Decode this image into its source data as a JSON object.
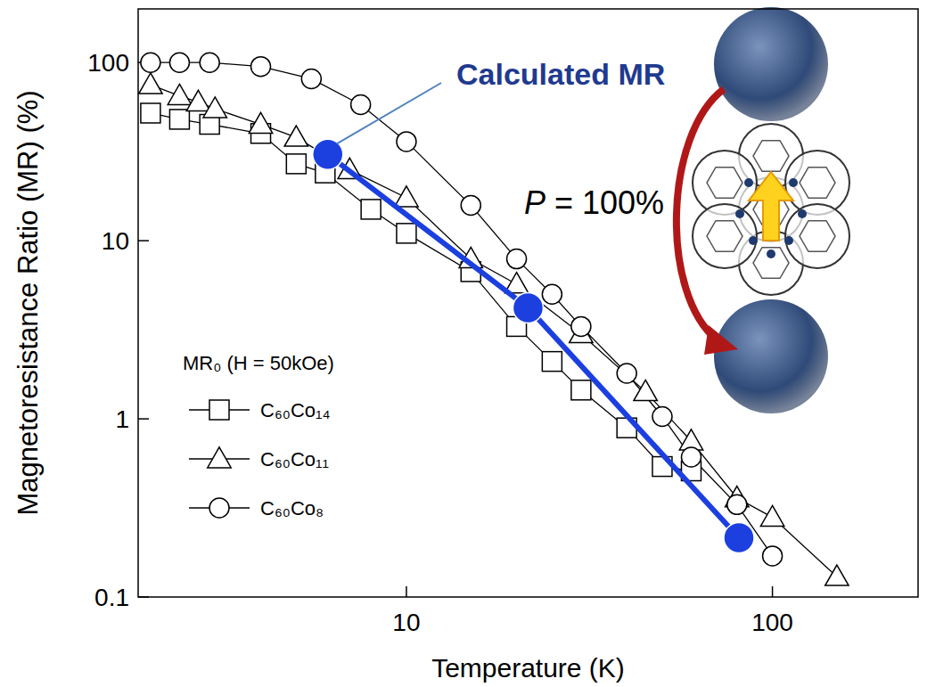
{
  "chart_data": {
    "type": "line",
    "log": true,
    "grid": false,
    "legend": "lower-left",
    "x_label": "Temperature  (K)",
    "y_label": "Magnetoresistance Ratio (MR)  (%)",
    "legend_title": "MR₀ (H = 50kOe)",
    "xlim": [
      1.85,
      250
    ],
    "ylim": [
      0.1,
      200
    ],
    "xticks": [
      10,
      100
    ],
    "yticks": [
      0.1,
      1,
      10,
      100
    ],
    "series": [
      {
        "name": "C₆₀Co₁₄",
        "color": "#000000",
        "marker": "square",
        "line_style": "solid",
        "x": [
          2,
          2.4,
          2.9,
          4,
          5,
          6,
          8,
          10,
          15,
          20,
          25,
          30,
          40,
          50,
          60
        ],
        "values": [
          52,
          48,
          45,
          40,
          27,
          24,
          15,
          11,
          6.7,
          3.3,
          2.1,
          1.45,
          0.89,
          0.54,
          0.51
        ]
      },
      {
        "name": "C₆₀Co₁₁",
        "color": "#000000",
        "marker": "triangle",
        "line_style": "solid",
        "x": [
          2,
          2.4,
          2.7,
          3,
          4,
          5,
          7,
          10,
          15,
          20,
          30,
          45,
          60,
          80,
          100,
          150
        ],
        "values": [
          75,
          65,
          60,
          55,
          45,
          38,
          25,
          17.4,
          7.9,
          5.7,
          3.0,
          1.42,
          0.75,
          0.36,
          0.28,
          0.13
        ]
      },
      {
        "name": "C₆₀Co₈",
        "color": "#000000",
        "marker": "circle",
        "line_style": "solid",
        "x": [
          2,
          2.4,
          2.9,
          4,
          5.5,
          7.5,
          10,
          15,
          20,
          25,
          30,
          40,
          50,
          60,
          80,
          100
        ],
        "values": [
          100,
          100,
          100,
          95,
          81,
          58,
          36,
          15.8,
          7.9,
          5.0,
          3.3,
          1.8,
          1.03,
          0.61,
          0.33,
          0.17
        ]
      }
    ],
    "calculated": {
      "name": "Calculated MR",
      "color": "#1c3fe0",
      "marker": "circle",
      "line_style": "solid",
      "x": [
        6.1,
        21.5,
        81
      ],
      "values": [
        30.5,
        4.2,
        0.215
      ]
    },
    "annotations": [
      {
        "text": "P = 100%"
      }
    ]
  }
}
